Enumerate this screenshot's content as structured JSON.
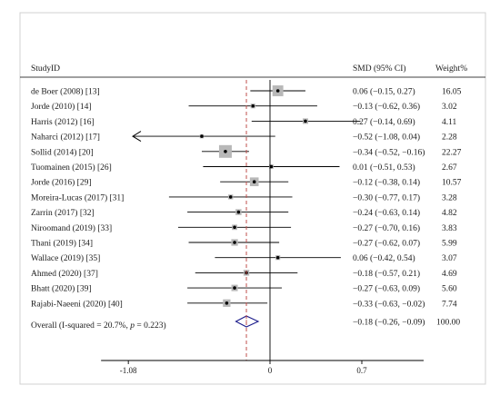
{
  "chart_data": {
    "type": "forest",
    "header": {
      "study_label": "Study",
      "id_label": "ID",
      "effect_label": "SMD (95% CI)",
      "weight_label": "Weight%"
    },
    "studies": [
      {
        "label": "de Boer (2008) [13]",
        "smd": 0.06,
        "lo": -0.15,
        "hi": 0.27,
        "ci_text": "0.06 (−0.15, 0.27)",
        "weight": 16.05,
        "weight_text": "16.05"
      },
      {
        "label": "Jorde (2010) [14]",
        "smd": -0.13,
        "lo": -0.62,
        "hi": 0.36,
        "ci_text": "−0.13 (−0.62, 0.36)",
        "weight": 3.02,
        "weight_text": "3.02"
      },
      {
        "label": "Harris (2012) [16]",
        "smd": 0.27,
        "lo": -0.14,
        "hi": 0.69,
        "ci_text": "0.27 (−0.14, 0.69)",
        "weight": 4.11,
        "weight_text": "4.11"
      },
      {
        "label": "Naharci (2012) [17]",
        "smd": -0.52,
        "lo": -1.08,
        "hi": 0.04,
        "ci_text": "−0.52 (−1.08, 0.04)",
        "weight": 2.28,
        "weight_text": "2.28",
        "arrow_left": true
      },
      {
        "label": "Sollid (2014) [20]",
        "smd": -0.34,
        "lo": -0.52,
        "hi": -0.16,
        "ci_text": "−0.34 (−0.52, −0.16)",
        "weight": 22.27,
        "weight_text": "22.27"
      },
      {
        "label": "Tuomainen (2015) [26]",
        "smd": 0.01,
        "lo": -0.51,
        "hi": 0.53,
        "ci_text": "0.01 (−0.51, 0.53)",
        "weight": 2.67,
        "weight_text": "2.67"
      },
      {
        "label": "Jorde (2016) [29]",
        "smd": -0.12,
        "lo": -0.38,
        "hi": 0.14,
        "ci_text": "−0.12 (−0.38, 0.14)",
        "weight": 10.57,
        "weight_text": "10.57"
      },
      {
        "label": "Moreira-Lucas (2017) [31]",
        "smd": -0.3,
        "lo": -0.77,
        "hi": 0.17,
        "ci_text": "−0.30 (−0.77, 0.17)",
        "weight": 3.28,
        "weight_text": "3.28"
      },
      {
        "label": "Zarrin (2017) [32]",
        "smd": -0.24,
        "lo": -0.63,
        "hi": 0.14,
        "ci_text": "−0.24 (−0.63, 0.14)",
        "weight": 4.82,
        "weight_text": "4.82"
      },
      {
        "label": "Niroomand (2019) [33]",
        "smd": -0.27,
        "lo": -0.7,
        "hi": 0.16,
        "ci_text": "−0.27 (−0.70, 0.16)",
        "weight": 3.83,
        "weight_text": "3.83"
      },
      {
        "label": "Thani (2019) [34]",
        "smd": -0.27,
        "lo": -0.62,
        "hi": 0.07,
        "ci_text": "−0.27 (−0.62, 0.07)",
        "weight": 5.99,
        "weight_text": "5.99"
      },
      {
        "label": "Wallace (2019) [35]",
        "smd": 0.06,
        "lo": -0.42,
        "hi": 0.54,
        "ci_text": "0.06 (−0.42, 0.54)",
        "weight": 3.07,
        "weight_text": "3.07"
      },
      {
        "label": "Ahmed (2020) [37]",
        "smd": -0.18,
        "lo": -0.57,
        "hi": 0.21,
        "ci_text": "−0.18 (−0.57, 0.21)",
        "weight": 4.69,
        "weight_text": "4.69"
      },
      {
        "label": "Bhatt (2020) [39]",
        "smd": -0.27,
        "lo": -0.63,
        "hi": 0.09,
        "ci_text": "−0.27 (−0.63, 0.09)",
        "weight": 5.6,
        "weight_text": "5.60"
      },
      {
        "label": "Rajabi-Naeeni (2020) [40]",
        "smd": -0.33,
        "lo": -0.63,
        "hi": -0.02,
        "ci_text": "−0.33 (−0.63, −0.02)",
        "weight": 7.74,
        "weight_text": "7.74"
      }
    ],
    "overall": {
      "label_main": "Overall   (I-squared = 20.7%, ",
      "label_p": "p",
      "label_tail": " = 0.223)",
      "smd": -0.18,
      "lo": -0.26,
      "hi": -0.09,
      "ci_text": "−0.18 (−0.26, −0.09)",
      "weight_text": "100.00"
    },
    "x_ticks": [
      {
        "value": -1.08,
        "label": "-1.08"
      },
      {
        "value": 0,
        "label": "0"
      },
      {
        "value": 0.7,
        "label": "0.7"
      }
    ],
    "null_line": 0,
    "reference_line": -0.18,
    "colors": {
      "box": "#b8b8b8",
      "diamond": "#1a1a8a",
      "reference_line": "#c0504d",
      "axis": "#000000"
    }
  }
}
